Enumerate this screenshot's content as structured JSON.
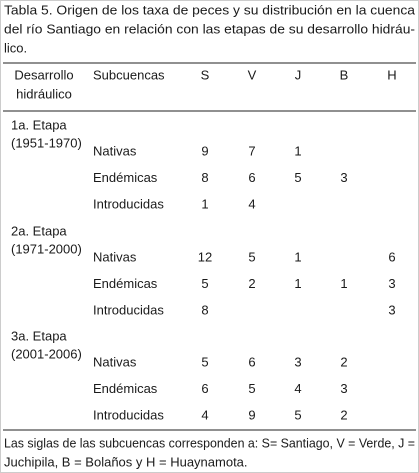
{
  "title": [
    "Tabla 5. Origen de los taxa de peces y su distribución en la cuenca",
    "del río Santiago en relación con las etapas de su desarrollo hidráu-",
    "lico."
  ],
  "table": {
    "header": {
      "stage": [
        "Desarrollo",
        "hidráulico"
      ],
      "columns": [
        "Subcuencas",
        "S",
        "V",
        "J",
        "B",
        "H"
      ]
    },
    "groups": [
      {
        "stage": [
          "1a. Etapa",
          "(1951-1970)"
        ],
        "rows": [
          [
            "Nativas",
            9,
            7,
            1,
            null,
            null
          ],
          [
            "Endémicas",
            8,
            6,
            5,
            3,
            null
          ],
          [
            "Introducidas",
            1,
            4,
            null,
            null,
            null
          ]
        ]
      },
      {
        "stage": [
          "2a. Etapa",
          "(1971-2000)"
        ],
        "rows": [
          [
            "Nativas",
            12,
            5,
            1,
            null,
            6
          ],
          [
            "Endémicas",
            5,
            2,
            1,
            1,
            3
          ],
          [
            "Introducidas",
            8,
            null,
            null,
            null,
            3
          ]
        ]
      },
      {
        "stage": [
          "3a. Etapa",
          "(2001-2006)"
        ],
        "rows": [
          [
            "Nativas",
            5,
            6,
            3,
            2,
            null
          ],
          [
            "Endémicas",
            6,
            5,
            4,
            3,
            null
          ],
          [
            "Introducidas",
            4,
            9,
            5,
            2,
            null
          ]
        ]
      }
    ]
  },
  "footnote": [
    "Las siglas de las subcuencas corresponden a: S= Santiago, V = Verde, J =",
    "Juchipila, B = Bolaños y H = Huaynamota."
  ]
}
